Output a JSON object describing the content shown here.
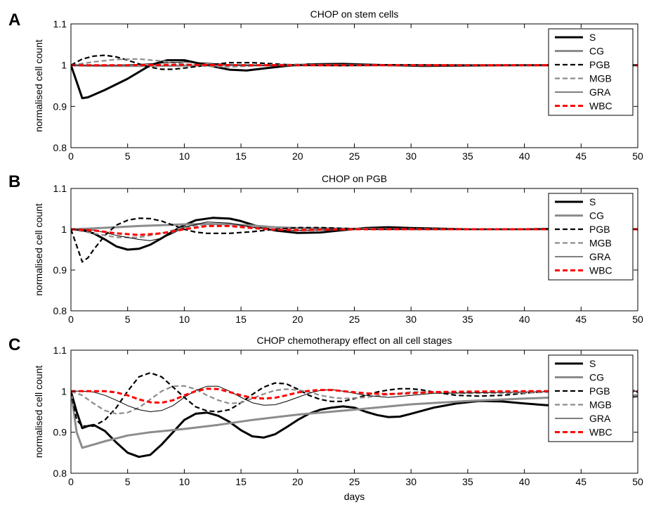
{
  "figure": {
    "xlabel_bottom": "days"
  },
  "chart_data": [
    {
      "type": "line",
      "panel_letter": "A",
      "title": "CHOP on stem cells",
      "xlabel": "",
      "ylabel": "normalised cell count",
      "xlim": [
        0,
        50
      ],
      "ylim": [
        0.8,
        1.1
      ],
      "xticks": [
        0,
        5,
        10,
        15,
        20,
        25,
        30,
        35,
        40,
        45,
        50
      ],
      "yticks": [
        0.8,
        0.9,
        1,
        1.1
      ],
      "grid": false,
      "legend_position": "top-right",
      "series": [
        {
          "name": "S",
          "color": "#000000",
          "style": "solid-thick",
          "x": [
            0,
            0.5,
            1,
            1.5,
            3,
            5,
            7,
            8.5,
            10,
            12,
            14,
            15.5,
            17,
            19,
            21,
            24,
            28,
            31,
            35,
            40,
            45,
            50
          ],
          "y": [
            1.0,
            0.96,
            0.92,
            0.922,
            0.94,
            0.967,
            1.0,
            1.012,
            1.012,
            1.0,
            0.989,
            0.987,
            0.992,
            0.998,
            1.002,
            1.003,
            1.0,
            0.998,
            0.999,
            1.0,
            1.0,
            1.0
          ]
        },
        {
          "name": "CG",
          "color": "#8c8c8c",
          "style": "solid-thick",
          "x": [
            0,
            1,
            3,
            6,
            10,
            15,
            20,
            30,
            40,
            50
          ],
          "y": [
            1.0,
            0.999,
            0.998,
            0.998,
            0.999,
            1.0,
            1.0,
            1.0,
            1.0,
            1.0
          ]
        },
        {
          "name": "PGB",
          "color": "#000000",
          "style": "dashed",
          "x": [
            0,
            1,
            2,
            3,
            4,
            5,
            6,
            7,
            8,
            9,
            10,
            12,
            14,
            16,
            18,
            20,
            24,
            28,
            35,
            50
          ],
          "y": [
            1.0,
            1.015,
            1.022,
            1.024,
            1.02,
            1.012,
            1.003,
            0.995,
            0.99,
            0.99,
            0.993,
            1.0,
            1.006,
            1.006,
            1.003,
            1.0,
            0.999,
            1.001,
            1.0,
            1.0
          ]
        },
        {
          "name": "MGB",
          "color": "#8c8c8c",
          "style": "dashed",
          "x": [
            0,
            2,
            4,
            6,
            8,
            10,
            12,
            14,
            16,
            18,
            20,
            25,
            30,
            50
          ],
          "y": [
            1.0,
            1.008,
            1.014,
            1.015,
            1.01,
            1.003,
            0.997,
            0.996,
            0.998,
            1.001,
            1.002,
            1.0,
            1.0,
            1.0
          ]
        },
        {
          "name": "GRA",
          "color": "#000000",
          "style": "solid-thin",
          "x": [
            0,
            2,
            4,
            6,
            8,
            10,
            12,
            15,
            18,
            20,
            25,
            50
          ],
          "y": [
            1.0,
            1.0,
            1.0,
            1.002,
            1.005,
            1.008,
            1.005,
            1.0,
            0.998,
            1.0,
            1.0,
            1.0
          ]
        },
        {
          "name": "WBC",
          "color": "#ff0000",
          "style": "dashed-thick",
          "x": [
            0,
            5,
            10,
            15,
            20,
            30,
            40,
            50
          ],
          "y": [
            1.0,
            1.0,
            1.001,
            1.0,
            1.0,
            1.0,
            1.0,
            1.0
          ]
        }
      ]
    },
    {
      "type": "line",
      "panel_letter": "B",
      "title": "CHOP on PGB",
      "xlabel": "",
      "ylabel": "normalised cell count",
      "xlim": [
        0,
        50
      ],
      "ylim": [
        0.8,
        1.1
      ],
      "xticks": [
        0,
        5,
        10,
        15,
        20,
        25,
        30,
        35,
        40,
        45,
        50
      ],
      "yticks": [
        0.8,
        0.9,
        1,
        1.1
      ],
      "grid": false,
      "legend_position": "top-right",
      "series": [
        {
          "name": "S",
          "color": "#000000",
          "style": "solid-thick",
          "x": [
            0,
            1,
            2,
            3,
            4,
            5,
            6,
            7,
            8,
            9,
            10,
            11,
            12.5,
            14,
            15,
            16,
            17,
            18,
            20,
            22,
            24,
            26,
            28,
            30,
            35,
            40,
            45,
            50
          ],
          "y": [
            1.0,
            0.998,
            0.99,
            0.975,
            0.958,
            0.95,
            0.952,
            0.962,
            0.978,
            0.995,
            1.01,
            1.022,
            1.028,
            1.026,
            1.02,
            1.011,
            1.003,
            0.997,
            0.991,
            0.992,
            0.998,
            1.003,
            1.005,
            1.003,
            1.0,
            1.0,
            1.002,
            1.0
          ]
        },
        {
          "name": "CG",
          "color": "#8c8c8c",
          "style": "solid-thick",
          "x": [
            0,
            2,
            4,
            6,
            8,
            10,
            12,
            14,
            16,
            18,
            20,
            25,
            30,
            50
          ],
          "y": [
            1.0,
            1.002,
            1.005,
            1.008,
            1.01,
            1.012,
            1.013,
            1.012,
            1.009,
            1.005,
            1.003,
            1.001,
            1.0,
            1.0
          ]
        },
        {
          "name": "PGB",
          "color": "#000000",
          "style": "dashed",
          "x": [
            0,
            0.5,
            1,
            1.5,
            2,
            3,
            4,
            5,
            6,
            7,
            8,
            9,
            10,
            11,
            12,
            14,
            16,
            18,
            20,
            22,
            24,
            26,
            28,
            30,
            35,
            50
          ],
          "y": [
            1.0,
            0.96,
            0.92,
            0.93,
            0.95,
            0.985,
            1.01,
            1.022,
            1.027,
            1.026,
            1.02,
            1.01,
            1.0,
            0.993,
            0.99,
            0.99,
            0.994,
            1.0,
            1.004,
            1.004,
            1.002,
            1.0,
            1.0,
            1.001,
            1.0,
            1.0
          ]
        },
        {
          "name": "MGB",
          "color": "#8c8c8c",
          "style": "dashed",
          "x": [
            0,
            2,
            4,
            6,
            8,
            10,
            12,
            14,
            16,
            18,
            20,
            25,
            30,
            50
          ],
          "y": [
            1.0,
            0.99,
            0.98,
            0.98,
            0.99,
            1.005,
            1.013,
            1.012,
            1.005,
            0.999,
            0.997,
            1.0,
            1.001,
            1.0
          ]
        },
        {
          "name": "GRA",
          "color": "#000000",
          "style": "solid-thin",
          "x": [
            0,
            2,
            4,
            6,
            7,
            8,
            9,
            10,
            12,
            14,
            16,
            18,
            20,
            25,
            30,
            50
          ],
          "y": [
            1.0,
            0.998,
            0.985,
            0.975,
            0.972,
            0.978,
            0.99,
            1.005,
            1.018,
            1.015,
            1.005,
            0.998,
            0.997,
            1.0,
            1.0,
            1.0
          ]
        },
        {
          "name": "WBC",
          "color": "#ff0000",
          "style": "dashed-thick",
          "x": [
            0,
            2,
            4,
            6,
            8,
            10,
            12,
            14,
            16,
            18,
            20,
            25,
            30,
            50
          ],
          "y": [
            1.0,
            0.997,
            0.99,
            0.986,
            0.99,
            1.0,
            1.008,
            1.008,
            1.003,
            0.999,
            0.998,
            1.0,
            1.0,
            1.0
          ]
        }
      ]
    },
    {
      "type": "line",
      "panel_letter": "C",
      "title": "CHOP chemotherapy effect on all cell stages",
      "xlabel": "days",
      "ylabel": "normalised cell count",
      "xlim": [
        0,
        50
      ],
      "ylim": [
        0.8,
        1.1
      ],
      "xticks": [
        0,
        5,
        10,
        15,
        20,
        25,
        30,
        35,
        40,
        45,
        50
      ],
      "yticks": [
        0.8,
        0.9,
        1,
        1.1
      ],
      "grid": false,
      "legend_position": "top-right",
      "series": [
        {
          "name": "S",
          "color": "#000000",
          "style": "solid-thick",
          "x": [
            0,
            0.5,
            1,
            1.5,
            2,
            3,
            4,
            5,
            6,
            7,
            8,
            9,
            10,
            11,
            12,
            13,
            14,
            15,
            16,
            17,
            18,
            19,
            20,
            21,
            22,
            23,
            24,
            25,
            26,
            27,
            28,
            29,
            30,
            32,
            34,
            36,
            38,
            40,
            42,
            44,
            46,
            48,
            50
          ],
          "y": [
            1.0,
            0.95,
            0.91,
            0.915,
            0.918,
            0.903,
            0.875,
            0.85,
            0.84,
            0.845,
            0.87,
            0.9,
            0.93,
            0.945,
            0.948,
            0.94,
            0.925,
            0.905,
            0.89,
            0.887,
            0.895,
            0.912,
            0.93,
            0.945,
            0.955,
            0.96,
            0.963,
            0.96,
            0.95,
            0.942,
            0.937,
            0.938,
            0.945,
            0.96,
            0.97,
            0.976,
            0.975,
            0.97,
            0.966,
            0.968,
            0.975,
            0.982,
            0.988
          ]
        },
        {
          "name": "CG",
          "color": "#8c8c8c",
          "style": "solid-thick",
          "x": [
            0,
            0.5,
            1,
            2,
            3,
            5,
            7,
            10,
            13,
            16,
            20,
            25,
            30,
            35,
            40,
            45,
            50
          ],
          "y": [
            1.0,
            0.9,
            0.862,
            0.87,
            0.878,
            0.892,
            0.9,
            0.908,
            0.918,
            0.93,
            0.943,
            0.955,
            0.968,
            0.976,
            0.982,
            0.987,
            0.99
          ]
        },
        {
          "name": "PGB",
          "color": "#000000",
          "style": "dashed",
          "x": [
            0,
            0.5,
            1,
            2,
            3,
            4,
            5,
            6,
            7,
            8,
            9,
            10,
            11,
            12,
            13,
            14,
            15,
            16,
            17,
            18,
            19,
            20,
            21,
            22,
            23,
            24,
            25,
            26,
            27,
            28,
            29,
            30,
            31,
            32,
            34,
            36,
            38,
            40,
            42,
            44,
            46,
            48,
            50
          ],
          "y": [
            1.0,
            0.93,
            0.915,
            0.915,
            0.93,
            0.96,
            1.0,
            1.035,
            1.045,
            1.035,
            1.01,
            0.985,
            0.962,
            0.952,
            0.95,
            0.955,
            0.972,
            0.992,
            1.01,
            1.02,
            1.018,
            1.005,
            0.99,
            0.98,
            0.975,
            0.975,
            0.982,
            0.99,
            0.998,
            1.003,
            1.006,
            1.006,
            1.003,
            0.998,
            0.99,
            0.988,
            0.99,
            0.995,
            1.0,
            1.002,
            1.0,
            0.998,
            0.998
          ]
        },
        {
          "name": "MGB",
          "color": "#8c8c8c",
          "style": "dashed",
          "x": [
            0,
            1,
            2,
            3,
            4,
            5,
            6,
            7,
            8,
            9,
            10,
            11,
            12,
            13,
            14,
            15,
            16,
            17,
            18,
            19,
            20,
            21,
            22,
            23,
            24,
            26,
            28,
            30,
            32,
            35,
            40,
            45,
            50
          ],
          "y": [
            1.0,
            0.99,
            0.97,
            0.953,
            0.945,
            0.948,
            0.96,
            0.98,
            1.0,
            1.012,
            1.013,
            1.005,
            0.99,
            0.978,
            0.97,
            0.972,
            0.982,
            0.993,
            1.002,
            1.005,
            1.003,
            0.998,
            0.99,
            0.985,
            0.982,
            0.985,
            0.992,
            0.998,
            0.998,
            0.995,
            0.996,
            1.0,
            1.002
          ]
        },
        {
          "name": "GRA",
          "color": "#000000",
          "style": "solid-thin",
          "x": [
            0,
            1,
            2,
            3,
            4,
            5,
            6,
            7,
            8,
            9,
            10,
            11,
            12,
            13,
            14,
            15,
            16,
            17,
            18,
            19,
            20,
            21,
            22,
            23,
            24,
            26,
            28,
            30,
            32,
            35,
            40,
            45,
            50
          ],
          "y": [
            1.0,
            1.0,
            0.998,
            0.99,
            0.978,
            0.965,
            0.955,
            0.95,
            0.953,
            0.965,
            0.985,
            1.002,
            1.012,
            1.012,
            1.0,
            0.985,
            0.972,
            0.966,
            0.967,
            0.975,
            0.985,
            0.995,
            1.002,
            1.004,
            1.0,
            0.99,
            0.985,
            0.99,
            0.995,
            0.996,
            0.998,
            1.0,
            1.0
          ]
        },
        {
          "name": "WBC",
          "color": "#ff0000",
          "style": "dashed-thick",
          "x": [
            0,
            1,
            2,
            3,
            4,
            5,
            6,
            7,
            8,
            9,
            10,
            11,
            12,
            13,
            14,
            15,
            16,
            17,
            18,
            19,
            20,
            21,
            22,
            23,
            24,
            26,
            28,
            30,
            32,
            35,
            40,
            45,
            50
          ],
          "y": [
            1.0,
            1.0,
            1.0,
            1.0,
            0.997,
            0.99,
            0.98,
            0.973,
            0.972,
            0.978,
            0.99,
            1.0,
            1.006,
            1.005,
            0.998,
            0.99,
            0.984,
            0.982,
            0.984,
            0.99,
            0.997,
            1.001,
            1.003,
            1.003,
            1.0,
            0.995,
            0.993,
            0.995,
            0.998,
            0.999,
            1.0,
            1.0,
            1.0
          ]
        }
      ]
    }
  ]
}
